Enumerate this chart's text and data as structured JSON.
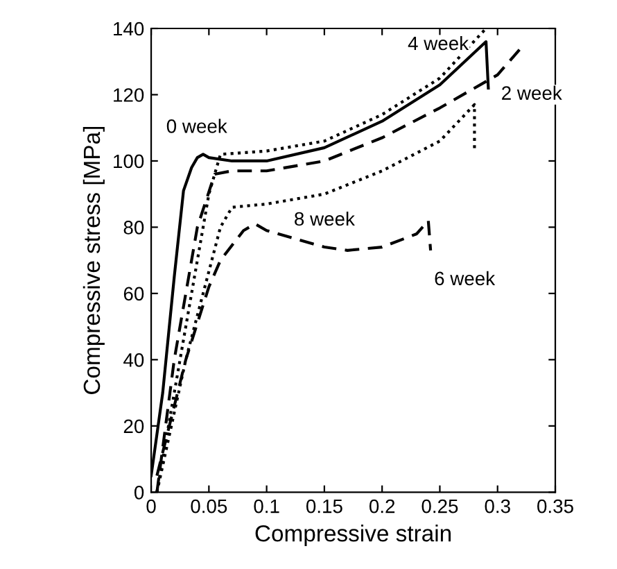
{
  "chart_data": {
    "type": "line",
    "xlabel": "Compressive strain",
    "ylabel": "Compressive stress [MPa]",
    "xlim": [
      0,
      0.35
    ],
    "ylim": [
      0,
      140
    ],
    "xticks": [
      0,
      0.05,
      0.1,
      0.15,
      0.2,
      0.25,
      0.3,
      0.35
    ],
    "yticks": [
      0,
      20,
      40,
      60,
      80,
      100,
      120,
      140
    ],
    "grid": false,
    "marker": "none",
    "series": [
      {
        "color": "#000000",
        "line_style": "solid",
        "x": [
          0,
          0.01,
          0.02,
          0.028,
          0.035,
          0.04,
          0.045,
          0.05,
          0.07,
          0.1,
          0.15,
          0.2,
          0.25,
          0.29,
          0.292
        ],
        "values": [
          5,
          30,
          65,
          91,
          98,
          101,
          102,
          101,
          100,
          100,
          104,
          112,
          123,
          136,
          122
        ]
      },
      {
        "color": "#000000",
        "line_style": "dashed",
        "x": [
          0.005,
          0.02,
          0.04,
          0.055,
          0.07,
          0.1,
          0.15,
          0.2,
          0.25,
          0.3,
          0.32
        ],
        "values": [
          0,
          40,
          80,
          96,
          97,
          97,
          100,
          107,
          116,
          126,
          134
        ]
      },
      {
        "color": "#000000",
        "line_style": "dotted",
        "x": [
          0.005,
          0.03,
          0.05,
          0.06,
          0.1,
          0.15,
          0.2,
          0.25,
          0.29
        ],
        "values": [
          0,
          50,
          90,
          102,
          103,
          106,
          114,
          125,
          140
        ]
      },
      {
        "color": "#000000",
        "line_style": "dotted",
        "x": [
          0.005,
          0.03,
          0.06,
          0.07,
          0.1,
          0.15,
          0.2,
          0.25,
          0.28,
          0.28
        ],
        "values": [
          0,
          40,
          80,
          86,
          87,
          90,
          97,
          106,
          117,
          103
        ]
      },
      {
        "color": "#000000",
        "line_style": "dashed",
        "x": [
          0.005,
          0.03,
          0.05,
          0.06,
          0.08,
          0.09,
          0.1,
          0.15,
          0.17,
          0.2,
          0.23,
          0.24,
          0.242
        ],
        "values": [
          5,
          40,
          62,
          70,
          79,
          81,
          79,
          74,
          73,
          74,
          78,
          82,
          73
        ]
      }
    ],
    "annotations": [
      {
        "text": "0 week",
        "x": 0.045,
        "y": 102
      },
      {
        "text": "2 week",
        "x": 0.3,
        "y": 126
      },
      {
        "text": "4 week",
        "x": 0.29,
        "y": 140
      },
      {
        "text": "8 week",
        "x": 0.15,
        "y": 90
      },
      {
        "text": "6 week",
        "x": 0.24,
        "y": 73
      }
    ]
  }
}
